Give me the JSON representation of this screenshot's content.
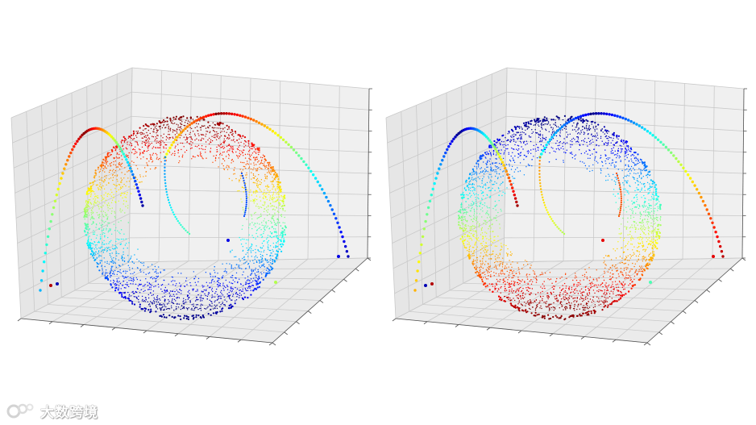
{
  "chart_data": [
    {
      "type": "scatter",
      "projection": "3d",
      "colormap": "jet",
      "grid": true,
      "title": "",
      "xlabel": "",
      "ylabel": "",
      "zlabel": "",
      "series": [
        {
          "values": [],
          "note": ""
        }
      ]
    },
    {
      "type": "scatter",
      "projection": "3d",
      "colormap": "jet",
      "colormap_reversed": true,
      "grid": true,
      "title": "",
      "xlabel": "",
      "ylabel": "",
      "zlabel": "",
      "series": [
        {
          "values": []
        }
      ]
    }
  ],
  "watermark": {
    "text": "大数跨境"
  },
  "colors": {
    "grid_line": "#c9c9c9",
    "pane_back": "#f0f0f0",
    "pane_side": "#e6e6e6",
    "floor": "#ebebeb",
    "axis_line": "#555555"
  }
}
